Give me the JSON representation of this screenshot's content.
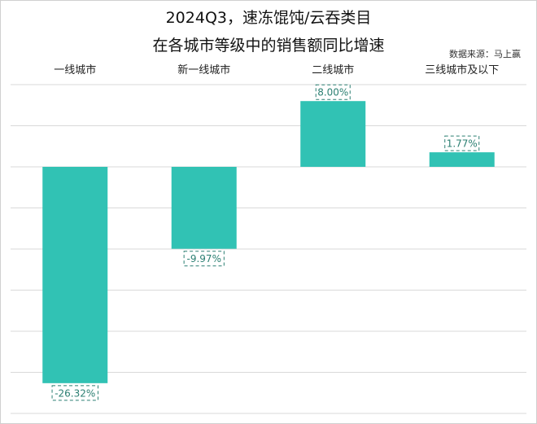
{
  "chart_data": {
    "type": "bar",
    "title": [
      "2024Q3，速冻馄饨/云吞类目",
      "在各城市等级中的销售额同比增速"
    ],
    "source": "数据来源：马上赢",
    "categories": [
      "一线城市",
      "新一线城市",
      "二线城市",
      "三线城市及以下"
    ],
    "values": [
      -26.32,
      -9.97,
      8.0,
      1.77
    ],
    "data_labels": [
      "-26.32%",
      "-9.97%",
      "8.00%",
      "1.77%"
    ],
    "unit": "%",
    "ylim": [
      -30,
      10
    ],
    "ytick_step": 5,
    "grid": true,
    "y_axis_labels_shown": false,
    "category_labels_position": "top",
    "colors": {
      "bar": "#31c2b4",
      "label_border": "#2b7f72",
      "grid": "#d9d9d9"
    }
  }
}
